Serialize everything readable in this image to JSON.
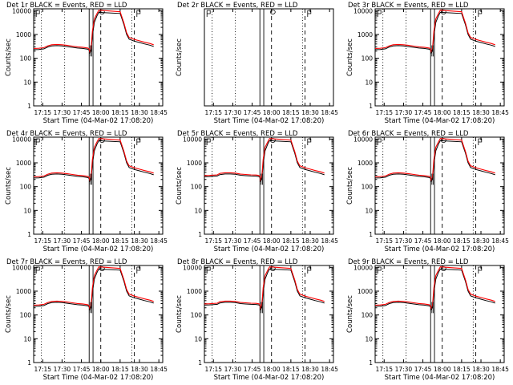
{
  "figure": {
    "background": "#ffffff"
  },
  "chart_data": [
    {
      "type": "line",
      "title": "Det 1r BLACK = Events, RED = LLD",
      "xlabel": "Start Time (04-Mar-02 17:08:20)",
      "ylabel": "Counts/sec",
      "x_ticks": [
        "17:15",
        "17:30",
        "17:45",
        "18:00",
        "18:15",
        "18:30",
        "18:45"
      ],
      "y_ticks": [
        "1",
        "10",
        "100",
        "1000",
        "10000"
      ],
      "y_scale": "log",
      "ylim": [
        1,
        12000
      ],
      "xlim": [
        "17:08",
        "18:48"
      ],
      "profile": "a",
      "series": [
        {
          "color": "#000000"
        },
        {
          "color": "#ff0000"
        }
      ]
    },
    {
      "type": "line",
      "title": "Det 2r BLACK = Events, RED = LLD",
      "xlabel": "Start Time (04-Mar-02 17:08:20)",
      "ylabel": "Counts/sec",
      "x_ticks": [
        "17:15",
        "17:30",
        "17:45",
        "18:00",
        "18:15",
        "18:30",
        "18:45"
      ],
      "y_scale": "log",
      "xlim": [
        "17:08",
        "18:48"
      ],
      "profile": "empty",
      "series": [
        {
          "color": "#000000"
        },
        {
          "color": "#ff0000"
        }
      ]
    },
    {
      "type": "line",
      "title": "Det 3r BLACK = Events, RED = LLD",
      "xlabel": "Start Time (04-Mar-02 17:08:20)",
      "ylabel": "Counts/sec",
      "x_ticks": [
        "17:15",
        "17:30",
        "17:45",
        "18:00",
        "18:15",
        "18:30",
        "18:45"
      ],
      "y_ticks": [
        "1",
        "10",
        "100",
        "1000",
        "10000"
      ],
      "y_scale": "log",
      "ylim": [
        1,
        12000
      ],
      "xlim": [
        "17:08",
        "18:48"
      ],
      "profile": "a",
      "series": [
        {
          "color": "#000000"
        },
        {
          "color": "#ff0000"
        }
      ]
    },
    {
      "type": "line",
      "title": "Det 4r BLACK = Events, RED = LLD",
      "xlabel": "Start Time (04-Mar-02 17:08:20)",
      "ylabel": "Counts/sec",
      "x_ticks": [
        "17:15",
        "17:30",
        "17:45",
        "18:00",
        "18:15",
        "18:30",
        "18:45"
      ],
      "y_ticks": [
        "1",
        "10",
        "100",
        "1000",
        "10000"
      ],
      "y_scale": "log",
      "ylim": [
        1,
        12000
      ],
      "xlim": [
        "17:08",
        "18:48"
      ],
      "profile": "a",
      "series": [
        {
          "color": "#000000"
        },
        {
          "color": "#ff0000"
        }
      ]
    },
    {
      "type": "line",
      "title": "Det 5r BLACK = Events, RED = LLD",
      "xlabel": "Start Time (04-Mar-02 17:08:20)",
      "ylabel": "Counts/sec",
      "x_ticks": [
        "17:15",
        "17:30",
        "17:45",
        "18:00",
        "18:15",
        "18:30",
        "18:45"
      ],
      "y_ticks": [
        "1",
        "10",
        "100",
        "1000",
        "10000"
      ],
      "y_scale": "log",
      "ylim": [
        1,
        12000
      ],
      "xlim": [
        "17:08",
        "18:48"
      ],
      "profile": "b",
      "series": [
        {
          "color": "#000000"
        },
        {
          "color": "#ff0000"
        }
      ]
    },
    {
      "type": "line",
      "title": "Det 6r BLACK = Events, RED = LLD",
      "xlabel": "Start Time (04-Mar-02 17:08:20)",
      "ylabel": "Counts/sec",
      "x_ticks": [
        "17:15",
        "17:30",
        "17:45",
        "18:00",
        "18:15",
        "18:30",
        "18:45"
      ],
      "y_ticks": [
        "1",
        "10",
        "100",
        "1000",
        "10000"
      ],
      "y_scale": "log",
      "ylim": [
        1,
        12000
      ],
      "xlim": [
        "17:08",
        "18:48"
      ],
      "profile": "a",
      "series": [
        {
          "color": "#000000"
        },
        {
          "color": "#ff0000"
        }
      ]
    },
    {
      "type": "line",
      "title": "Det 7r BLACK = Events, RED = LLD",
      "xlabel": "Start Time (04-Mar-02 17:08:20)",
      "ylabel": "Counts/sec",
      "x_ticks": [
        "17:15",
        "17:30",
        "17:45",
        "18:00",
        "18:15",
        "18:30",
        "18:45"
      ],
      "y_ticks": [
        "1",
        "10",
        "100",
        "1000",
        "10000"
      ],
      "y_scale": "log",
      "ylim": [
        1,
        12000
      ],
      "xlim": [
        "17:08",
        "18:48"
      ],
      "profile": "a",
      "series": [
        {
          "color": "#000000"
        },
        {
          "color": "#ff0000"
        }
      ]
    },
    {
      "type": "line",
      "title": "Det 8r BLACK = Events, RED = LLD",
      "xlabel": "Start Time (04-Mar-02 17:08:20)",
      "ylabel": "Counts/sec",
      "x_ticks": [
        "17:15",
        "17:30",
        "17:45",
        "18:00",
        "18:15",
        "18:30",
        "18:45"
      ],
      "y_ticks": [
        "1",
        "10",
        "100",
        "1000",
        "10000"
      ],
      "y_scale": "log",
      "ylim": [
        1,
        12000
      ],
      "xlim": [
        "17:08",
        "18:48"
      ],
      "profile": "b",
      "series": [
        {
          "color": "#000000"
        },
        {
          "color": "#ff0000"
        }
      ]
    },
    {
      "type": "line",
      "title": "Det 9r BLACK = Events, RED = LLD",
      "xlabel": "Start Time (04-Mar-02 17:08:20)",
      "ylabel": "Counts/sec",
      "x_ticks": [
        "17:15",
        "17:30",
        "17:45",
        "18:00",
        "18:15",
        "18:30",
        "18:45"
      ],
      "y_ticks": [
        "1",
        "10",
        "100",
        "1000",
        "10000"
      ],
      "y_scale": "log",
      "ylim": [
        1,
        12000
      ],
      "xlim": [
        "17:08",
        "18:48"
      ],
      "profile": "a",
      "series": [
        {
          "color": "#000000"
        },
        {
          "color": "#ff0000"
        }
      ]
    }
  ]
}
